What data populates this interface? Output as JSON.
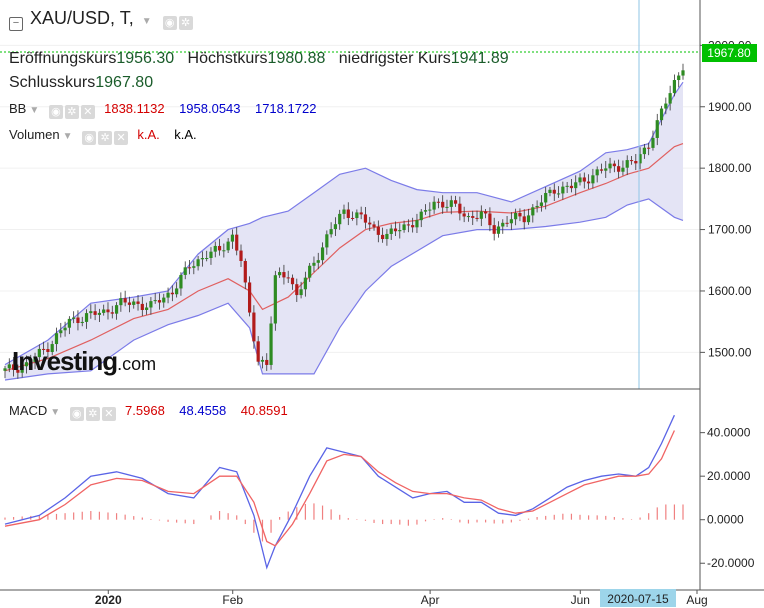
{
  "header": {
    "symbol": "XAU/USD, T,",
    "ohlc": {
      "open_label": "Eröffnungskurs",
      "open": "1956.30",
      "high_label": "Höchstkurs",
      "high": "1980.88",
      "low_label": "niedrigster Kurs",
      "low": "1941.89",
      "close_label": "Schlusskurs",
      "close": "1967.80"
    }
  },
  "indicators": {
    "bb": {
      "label": "BB",
      "values": [
        "1838.1132",
        "1958.0543",
        "1718.1722"
      ]
    },
    "volume": {
      "label": "Volumen",
      "values": [
        "k.A.",
        "k.A."
      ]
    },
    "macd": {
      "label": "MACD",
      "values": [
        "7.5968",
        "48.4558",
        "40.8591"
      ]
    }
  },
  "logo": {
    "main": "Investing",
    "suffix": ".com"
  },
  "colors": {
    "up": "#2e8b22",
    "down": "#b21b1b",
    "bb_band": "#7b7be8",
    "bb_fill": "#e4e4f5",
    "bb_mid": "#e06060",
    "macd_line": "#5a64e6",
    "signal_line": "#f06464",
    "price_line": "#00c000",
    "crosshair": "#8fc6e6"
  },
  "chart_data": [
    {
      "type": "candlestick",
      "price_axis": {
        "ticks": [
          "2000.00",
          "1900.00",
          "1800.00",
          "1700.00",
          "1600.00",
          "1500.00"
        ],
        "range": [
          1455,
          2025
        ]
      },
      "current_price_label": "1967.80",
      "time_axis": {
        "labels": [
          "2020",
          "Feb",
          "Apr",
          "Jun",
          "Aug"
        ],
        "crosshair_label": "2020-07-15"
      },
      "trend_points": [
        {
          "i": 0,
          "p": 1470
        },
        {
          "i": 5,
          "p": 1480
        },
        {
          "i": 10,
          "p": 1510
        },
        {
          "i": 15,
          "p": 1550
        },
        {
          "i": 19,
          "p": 1560
        },
        {
          "i": 23,
          "p": 1565
        },
        {
          "i": 27,
          "p": 1580
        },
        {
          "i": 30,
          "p": 1580
        },
        {
          "i": 34,
          "p": 1575
        },
        {
          "i": 39,
          "p": 1600
        },
        {
          "i": 43,
          "p": 1640
        },
        {
          "i": 47,
          "p": 1660
        },
        {
          "i": 50,
          "p": 1665
        },
        {
          "i": 53,
          "p": 1690
        },
        {
          "i": 55,
          "p": 1650
        },
        {
          "i": 57,
          "p": 1560
        },
        {
          "i": 59,
          "p": 1490
        },
        {
          "i": 61,
          "p": 1480
        },
        {
          "i": 63,
          "p": 1620
        },
        {
          "i": 66,
          "p": 1630
        },
        {
          "i": 68,
          "p": 1590
        },
        {
          "i": 70,
          "p": 1620
        },
        {
          "i": 73,
          "p": 1660
        },
        {
          "i": 76,
          "p": 1700
        },
        {
          "i": 79,
          "p": 1730
        },
        {
          "i": 83,
          "p": 1720
        },
        {
          "i": 86,
          "p": 1700
        },
        {
          "i": 89,
          "p": 1690
        },
        {
          "i": 93,
          "p": 1705
        },
        {
          "i": 97,
          "p": 1720
        },
        {
          "i": 100,
          "p": 1745
        },
        {
          "i": 104,
          "p": 1740
        },
        {
          "i": 108,
          "p": 1720
        },
        {
          "i": 111,
          "p": 1725
        },
        {
          "i": 114,
          "p": 1700
        },
        {
          "i": 117,
          "p": 1715
        },
        {
          "i": 121,
          "p": 1720
        },
        {
          "i": 124,
          "p": 1740
        },
        {
          "i": 128,
          "p": 1765
        },
        {
          "i": 132,
          "p": 1770
        },
        {
          "i": 136,
          "p": 1785
        },
        {
          "i": 140,
          "p": 1800
        },
        {
          "i": 144,
          "p": 1805
        },
        {
          "i": 147,
          "p": 1810
        },
        {
          "i": 150,
          "p": 1840
        },
        {
          "i": 153,
          "p": 1890
        },
        {
          "i": 156,
          "p": 1940
        },
        {
          "i": 158,
          "p": 1968
        }
      ],
      "bollinger": {
        "upper": [
          [
            0,
            1480
          ],
          [
            10,
            1520
          ],
          [
            20,
            1580
          ],
          [
            30,
            1590
          ],
          [
            38,
            1600
          ],
          [
            45,
            1660
          ],
          [
            52,
            1700
          ],
          [
            57,
            1710
          ],
          [
            60,
            1720
          ],
          [
            66,
            1730
          ],
          [
            72,
            1760
          ],
          [
            78,
            1790
          ],
          [
            84,
            1800
          ],
          [
            90,
            1780
          ],
          [
            96,
            1765
          ],
          [
            102,
            1760
          ],
          [
            110,
            1760
          ],
          [
            118,
            1745
          ],
          [
            126,
            1770
          ],
          [
            134,
            1795
          ],
          [
            140,
            1825
          ],
          [
            145,
            1830
          ],
          [
            150,
            1840
          ],
          [
            156,
            1920
          ],
          [
            158,
            1940
          ]
        ],
        "middle": [
          [
            0,
            1470
          ],
          [
            10,
            1490
          ],
          [
            20,
            1520
          ],
          [
            30,
            1555
          ],
          [
            38,
            1570
          ],
          [
            45,
            1600
          ],
          [
            52,
            1620
          ],
          [
            57,
            1600
          ],
          [
            60,
            1570
          ],
          [
            66,
            1590
          ],
          [
            72,
            1630
          ],
          [
            78,
            1670
          ],
          [
            84,
            1700
          ],
          [
            90,
            1710
          ],
          [
            96,
            1715
          ],
          [
            102,
            1728
          ],
          [
            110,
            1730
          ],
          [
            118,
            1727
          ],
          [
            126,
            1738
          ],
          [
            134,
            1760
          ],
          [
            140,
            1775
          ],
          [
            145,
            1790
          ],
          [
            150,
            1800
          ],
          [
            156,
            1835
          ],
          [
            158,
            1840
          ]
        ],
        "lower": [
          [
            0,
            1455
          ],
          [
            10,
            1465
          ],
          [
            20,
            1470
          ],
          [
            30,
            1520
          ],
          [
            38,
            1545
          ],
          [
            45,
            1560
          ],
          [
            52,
            1580
          ],
          [
            57,
            1540
          ],
          [
            60,
            1465
          ],
          [
            66,
            1465
          ],
          [
            72,
            1465
          ],
          [
            78,
            1540
          ],
          [
            84,
            1600
          ],
          [
            90,
            1640
          ],
          [
            96,
            1665
          ],
          [
            102,
            1690
          ],
          [
            110,
            1700
          ],
          [
            118,
            1700
          ],
          [
            126,
            1705
          ],
          [
            134,
            1712
          ],
          [
            140,
            1720
          ],
          [
            145,
            1740
          ],
          [
            150,
            1750
          ],
          [
            156,
            1720
          ],
          [
            158,
            1715
          ]
        ]
      },
      "volume": {
        "label": "Volumen",
        "values": [
          "k.A.",
          "k.A."
        ]
      }
    },
    {
      "type": "line",
      "name": "MACD",
      "y_axis": {
        "ticks": [
          "40.0000",
          "20.0000",
          "0.0000",
          "-20.0000"
        ],
        "range": [
          -30,
          55
        ]
      },
      "series": [
        {
          "values": [
            [
              0,
              -2
            ],
            [
              8,
              2
            ],
            [
              14,
              10
            ],
            [
              20,
              20
            ],
            [
              26,
              22
            ],
            [
              32,
              19
            ],
            [
              38,
              12
            ],
            [
              44,
              10
            ],
            [
              50,
              24
            ],
            [
              54,
              22
            ],
            [
              58,
              2
            ],
            [
              61,
              -22
            ],
            [
              63,
              -12
            ],
            [
              67,
              3
            ],
            [
              71,
              20
            ],
            [
              75,
              33
            ],
            [
              79,
              31
            ],
            [
              83,
              29
            ],
            [
              87,
              20
            ],
            [
              91,
              15
            ],
            [
              95,
              10
            ],
            [
              99,
              12
            ],
            [
              103,
              13
            ],
            [
              107,
              8
            ],
            [
              111,
              8
            ],
            [
              115,
              3
            ],
            [
              119,
              2
            ],
            [
              123,
              5
            ],
            [
              127,
              10
            ],
            [
              131,
              15
            ],
            [
              135,
              18
            ],
            [
              139,
              20
            ],
            [
              143,
              21
            ],
            [
              147,
              20
            ],
            [
              150,
              24
            ],
            [
              153,
              35
            ],
            [
              156,
              48
            ]
          ]
        },
        {
          "values": [
            [
              0,
              -3
            ],
            [
              8,
              0
            ],
            [
              14,
              7
            ],
            [
              20,
              16
            ],
            [
              26,
              19
            ],
            [
              32,
              18
            ],
            [
              38,
              13
            ],
            [
              44,
              12
            ],
            [
              50,
              20
            ],
            [
              54,
              20
            ],
            [
              58,
              8
            ],
            [
              61,
              -10
            ],
            [
              63,
              -12
            ],
            [
              67,
              -2
            ],
            [
              71,
              12
            ],
            [
              75,
              27
            ],
            [
              79,
              30
            ],
            [
              83,
              29
            ],
            [
              87,
              22
            ],
            [
              91,
              17
            ],
            [
              95,
              13
            ],
            [
              99,
              12
            ],
            [
              103,
              12
            ],
            [
              107,
              10
            ],
            [
              111,
              9
            ],
            [
              115,
              5
            ],
            [
              119,
              3
            ],
            [
              123,
              4
            ],
            [
              127,
              8
            ],
            [
              131,
              12
            ],
            [
              135,
              16
            ],
            [
              139,
              18
            ],
            [
              143,
              20
            ],
            [
              147,
              20
            ],
            [
              150,
              21
            ],
            [
              153,
              28
            ],
            [
              156,
              41
            ]
          ]
        }
      ]
    }
  ]
}
